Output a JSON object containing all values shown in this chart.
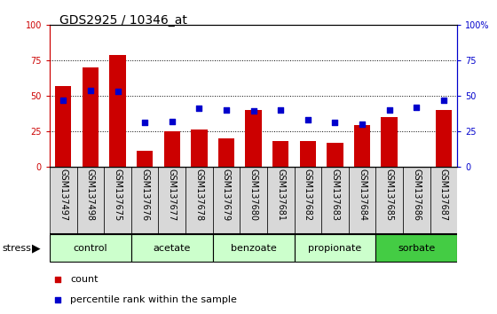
{
  "title": "GDS2925 / 10346_at",
  "samples": [
    "GSM137497",
    "GSM137498",
    "GSM137675",
    "GSM137676",
    "GSM137677",
    "GSM137678",
    "GSM137679",
    "GSM137680",
    "GSM137681",
    "GSM137682",
    "GSM137683",
    "GSM137684",
    "GSM137685",
    "GSM137686",
    "GSM137687"
  ],
  "counts": [
    57,
    70,
    79,
    11,
    25,
    26,
    20,
    40,
    18,
    18,
    17,
    29,
    35,
    0,
    40
  ],
  "percentile": [
    47,
    54,
    53,
    31,
    32,
    41,
    40,
    39,
    40,
    33,
    31,
    30,
    40,
    42,
    47
  ],
  "groups": [
    {
      "label": "control",
      "start": 0,
      "end": 3
    },
    {
      "label": "acetate",
      "start": 3,
      "end": 6
    },
    {
      "label": "benzoate",
      "start": 6,
      "end": 9
    },
    {
      "label": "propionate",
      "start": 9,
      "end": 12
    },
    {
      "label": "sorbate",
      "start": 12,
      "end": 15
    }
  ],
  "bar_color": "#cc0000",
  "dot_color": "#0000cc",
  "ylim": [
    0,
    100
  ],
  "yticks": [
    0,
    25,
    50,
    75,
    100
  ],
  "light_green": "#ccffcc",
  "dark_green": "#44cc44",
  "cell_bg": "#d8d8d8",
  "panel_bg": "#ffffff",
  "stress_label": "stress",
  "legend_count": "count",
  "legend_percentile": "percentile rank within the sample",
  "title_fontsize": 10,
  "tick_fontsize": 7,
  "label_fontsize": 8
}
